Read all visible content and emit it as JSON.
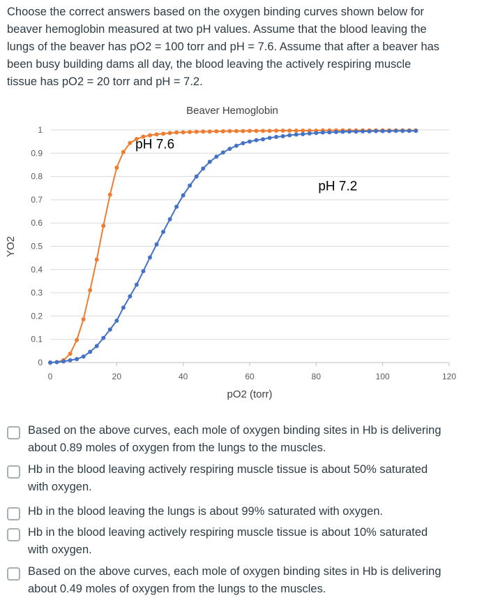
{
  "question": {
    "line1": "Choose the correct answers based on the oxygen binding curves shown below for",
    "line2": "beaver hemoglobin measured at two pH values. Assume that the blood leaving the",
    "line3": "lungs of the beaver has pO2 = 100 torr and pH = 7.6. Assume that after a beaver has",
    "line4": "been busy building dams all day, the blood leaving the actively respiring muscle",
    "line5": "tissue has pO2 = 20 torr and pH = 7.2."
  },
  "chart_data": {
    "type": "line",
    "title": "Beaver Hemoglobin",
    "xlabel": "pO2 (torr)",
    "ylabel": "YO2",
    "xlim": [
      0,
      120
    ],
    "ylim": [
      0,
      1
    ],
    "xticks": [
      "0",
      "20",
      "40",
      "60",
      "80",
      "100",
      "120"
    ],
    "yticks": [
      "0",
      "0.1",
      "0.2",
      "0.3",
      "0.4",
      "0.5",
      "0.6",
      "0.7",
      "0.8",
      "0.9",
      "1"
    ],
    "grid": "horizontal",
    "series": [
      {
        "name": "pH 7.6",
        "color": "#ed7d31",
        "x": [
          0,
          2,
          4,
          6,
          8,
          10,
          12,
          14,
          16,
          18,
          20,
          22,
          24,
          26,
          28,
          30,
          32,
          34,
          36,
          38,
          40,
          42,
          44,
          46,
          48,
          50,
          52,
          54,
          56,
          58,
          60,
          62,
          64,
          66,
          68,
          70,
          72,
          74,
          76,
          78,
          80,
          82,
          84,
          86,
          88,
          90,
          92,
          94,
          96,
          98,
          100,
          102,
          104,
          106,
          108,
          110
        ],
        "y": [
          0,
          0.002,
          0.01,
          0.038,
          0.097,
          0.186,
          0.311,
          0.443,
          0.588,
          0.722,
          0.838,
          0.905,
          0.944,
          0.961,
          0.971,
          0.977,
          0.981,
          0.984,
          0.987,
          0.989,
          0.99,
          0.991,
          0.992,
          0.993,
          0.993,
          0.994,
          0.994,
          0.995,
          0.995,
          0.995,
          0.996,
          0.996,
          0.996,
          0.996,
          0.997,
          0.997,
          0.997,
          0.997,
          0.997,
          0.997,
          0.997,
          0.998,
          0.998,
          0.998,
          0.998,
          0.998,
          0.998,
          0.998,
          0.998,
          0.998,
          0.998,
          0.998,
          0.998,
          0.998,
          0.998,
          0.998
        ]
      },
      {
        "name": "pH 7.2",
        "color": "#4472c4",
        "x": [
          0,
          2,
          4,
          6,
          8,
          10,
          12,
          14,
          16,
          18,
          20,
          22,
          24,
          26,
          28,
          30,
          32,
          34,
          36,
          38,
          40,
          42,
          44,
          46,
          48,
          50,
          52,
          54,
          56,
          58,
          60,
          62,
          64,
          66,
          68,
          70,
          72,
          74,
          76,
          78,
          80,
          82,
          84,
          86,
          88,
          90,
          92,
          94,
          96,
          98,
          100,
          102,
          104,
          106,
          108,
          110
        ],
        "y": [
          0,
          0.002,
          0.005,
          0.01,
          0.015,
          0.026,
          0.046,
          0.071,
          0.106,
          0.142,
          0.18,
          0.236,
          0.285,
          0.335,
          0.393,
          0.452,
          0.508,
          0.562,
          0.616,
          0.67,
          0.719,
          0.761,
          0.8,
          0.834,
          0.863,
          0.885,
          0.903,
          0.919,
          0.932,
          0.943,
          0.95,
          0.956,
          0.96,
          0.966,
          0.97,
          0.973,
          0.977,
          0.98,
          0.982,
          0.985,
          0.987,
          0.989,
          0.99,
          0.991,
          0.992,
          0.993,
          0.993,
          0.994,
          0.994,
          0.995,
          0.995,
          0.995,
          0.996,
          0.996,
          0.996,
          0.996
        ]
      }
    ],
    "annotations": [
      {
        "text": "pH 7.6",
        "x": 31.5,
        "y": 0.92
      },
      {
        "text": "pH 7.2",
        "x": 86.5,
        "y": 0.74
      }
    ]
  },
  "answers": [
    {
      "line1": "Based on the above curves, each mole of oxygen binding sites in Hb is delivering",
      "line2": "about 0.89 moles of oxygen from the lungs to the muscles."
    },
    {
      "line1": "Hb in the blood leaving actively respiring muscle tissue is about 50% saturated",
      "line2": "with oxygen."
    },
    {
      "line1": "Hb in the blood leaving the lungs is about 99% saturated with oxygen.",
      "line2": ""
    },
    {
      "line1": "Hb in the blood leaving actively respiring muscle tissue is about 10% saturated",
      "line2": "with oxygen."
    },
    {
      "line1": "Based on the above curves, each mole of oxygen binding sites in Hb is delivering",
      "line2": "about 0.49 moles of oxygen from the lungs to the muscles."
    }
  ]
}
